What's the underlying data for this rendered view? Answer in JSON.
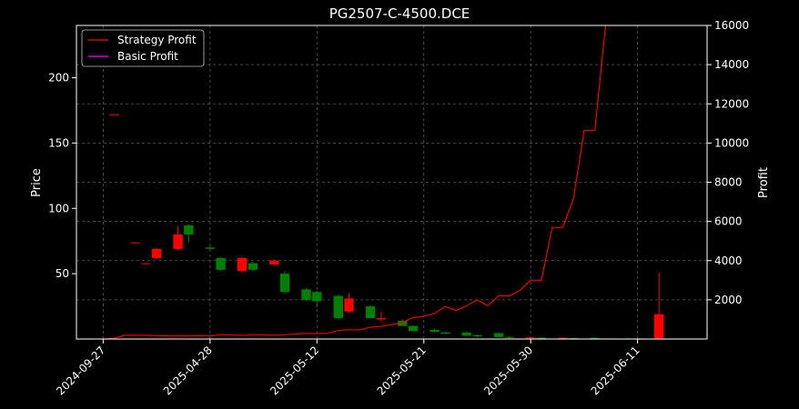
{
  "chart_data": {
    "type": "candlestick",
    "title": "PG2507-C-4500.DCE",
    "ylabel_left": "Price",
    "ylabel_right": "Profit",
    "xlabel": "",
    "left_yticks": [
      50,
      100,
      150,
      200
    ],
    "right_yticks": [
      2000,
      4000,
      6000,
      8000,
      10000,
      12000,
      14000,
      16000
    ],
    "xtick_labels": [
      "2024-09-27",
      "2025-04-28",
      "2025-05-12",
      "2025-05-21",
      "2025-05-30",
      "2025-06-11"
    ],
    "xtick_positions": [
      0,
      10,
      20,
      30,
      40,
      50
    ],
    "ylim_left": [
      0,
      240
    ],
    "ylim_right": [
      0,
      16000
    ],
    "grid": true,
    "legend_position": "top-left",
    "colors": {
      "up": "#ff0000",
      "down": "#008000",
      "strategy": "#ff0000",
      "basic": "#ff00ff"
    },
    "candles": [
      {
        "i": 1,
        "o": 171.5,
        "h": 172.0,
        "l": 171.0,
        "c": 172.0
      },
      {
        "i": 3,
        "o": 73.5,
        "h": 74.0,
        "l": 73.0,
        "c": 74.0
      },
      {
        "i": 4,
        "o": 57.5,
        "h": 58.0,
        "l": 57.0,
        "c": 58.0
      },
      {
        "i": 5,
        "o": 62.0,
        "h": 70.0,
        "l": 61.0,
        "c": 69.0
      },
      {
        "i": 7,
        "o": 69.0,
        "h": 86.0,
        "l": 68.0,
        "c": 80.0
      },
      {
        "i": 8,
        "o": 87.0,
        "h": 88.0,
        "l": 74.0,
        "c": 80.0
      },
      {
        "i": 10,
        "o": 70.0,
        "h": 71.0,
        "l": 67.0,
        "c": 69.0
      },
      {
        "i": 11,
        "o": 62.0,
        "h": 63.0,
        "l": 52.0,
        "c": 53.0
      },
      {
        "i": 13,
        "o": 52.0,
        "h": 63.0,
        "l": 51.0,
        "c": 62.0
      },
      {
        "i": 14,
        "o": 58.0,
        "h": 59.0,
        "l": 52.0,
        "c": 53.0
      },
      {
        "i": 16,
        "o": 57.0,
        "h": 61.0,
        "l": 56.0,
        "c": 60.0
      },
      {
        "i": 17,
        "o": 50.0,
        "h": 52.0,
        "l": 35.0,
        "c": 36.0
      },
      {
        "i": 19,
        "o": 38.0,
        "h": 39.0,
        "l": 29.0,
        "c": 30.0
      },
      {
        "i": 20,
        "o": 36.0,
        "h": 37.0,
        "l": 24.0,
        "c": 29.0
      },
      {
        "i": 22,
        "o": 33.0,
        "h": 34.0,
        "l": 15.0,
        "c": 16.0
      },
      {
        "i": 23,
        "o": 21.0,
        "h": 35.0,
        "l": 20.0,
        "c": 31.0
      },
      {
        "i": 25,
        "o": 25.0,
        "h": 26.0,
        "l": 16.0,
        "c": 16.0
      },
      {
        "i": 26,
        "o": 15.0,
        "h": 21.0,
        "l": 13.0,
        "c": 16.0
      },
      {
        "i": 28,
        "o": 14.0,
        "h": 15.0,
        "l": 10.0,
        "c": 10.0
      },
      {
        "i": 29,
        "o": 10.0,
        "h": 10.5,
        "l": 6.0,
        "c": 6.0
      },
      {
        "i": 31,
        "o": 7.0,
        "h": 8.0,
        "l": 5.0,
        "c": 5.5
      },
      {
        "i": 32,
        "o": 5.0,
        "h": 6.0,
        "l": 4.0,
        "c": 4.0
      },
      {
        "i": 34,
        "o": 5.0,
        "h": 5.5,
        "l": 2.5,
        "c": 2.5
      },
      {
        "i": 35,
        "o": 3.0,
        "h": 3.5,
        "l": 1.5,
        "c": 2.0
      },
      {
        "i": 37,
        "o": 4.5,
        "h": 5.0,
        "l": 1.5,
        "c": 1.5
      },
      {
        "i": 38,
        "o": 1.5,
        "h": 2.0,
        "l": 0.5,
        "c": 1.0
      },
      {
        "i": 40,
        "o": 0.8,
        "h": 1.5,
        "l": 0.3,
        "c": 1.2
      },
      {
        "i": 41,
        "o": 1.0,
        "h": 1.5,
        "l": 0.5,
        "c": 0.6
      },
      {
        "i": 43,
        "o": 0.5,
        "h": 1.2,
        "l": 0.2,
        "c": 0.9
      },
      {
        "i": 44,
        "o": 0.7,
        "h": 1.0,
        "l": 0.3,
        "c": 0.5
      },
      {
        "i": 46,
        "o": 0.9,
        "h": 1.3,
        "l": 0.4,
        "c": 0.6
      },
      {
        "i": 47,
        "o": 0.4,
        "h": 0.8,
        "l": 0.1,
        "c": 0.3
      },
      {
        "i": 49,
        "o": 0.3,
        "h": 0.6,
        "l": 0.1,
        "c": 0.2
      },
      {
        "i": 50,
        "o": 0.1,
        "h": 0.3,
        "l": 0.0,
        "c": 0.2
      },
      {
        "i": 52,
        "o": 0.5,
        "h": 51.0,
        "l": 0.0,
        "c": 19.0
      }
    ],
    "series": [
      {
        "name": "Strategy Profit",
        "color": "#ff0000",
        "points": [
          [
            0,
            0
          ],
          [
            1,
            30
          ],
          [
            2,
            190
          ],
          [
            3,
            200
          ],
          [
            4,
            190
          ],
          [
            5,
            170
          ],
          [
            6,
            160
          ],
          [
            7,
            160
          ],
          [
            8,
            160
          ],
          [
            10,
            170
          ],
          [
            11,
            210
          ],
          [
            12,
            210
          ],
          [
            13,
            190
          ],
          [
            14,
            210
          ],
          [
            15,
            210
          ],
          [
            16,
            190
          ],
          [
            17,
            220
          ],
          [
            18,
            260
          ],
          [
            19,
            280
          ],
          [
            20,
            280
          ],
          [
            21,
            290
          ],
          [
            22,
            440
          ],
          [
            23,
            470
          ],
          [
            24,
            470
          ],
          [
            25,
            600
          ],
          [
            26,
            640
          ],
          [
            27,
            730
          ],
          [
            28,
            850
          ],
          [
            29,
            1100
          ],
          [
            30,
            1160
          ],
          [
            31,
            1300
          ],
          [
            32,
            1660
          ],
          [
            33,
            1460
          ],
          [
            34,
            1690
          ],
          [
            35,
            2000
          ],
          [
            36,
            1700
          ],
          [
            37,
            2200
          ],
          [
            38,
            2200
          ],
          [
            39,
            2480
          ],
          [
            40,
            3000
          ],
          [
            41,
            3000
          ],
          [
            42,
            5670
          ],
          [
            43,
            5700
          ],
          [
            44,
            7160
          ],
          [
            45,
            10640
          ],
          [
            46,
            10650
          ],
          [
            47,
            16000
          ],
          [
            48,
            16000
          ]
        ]
      },
      {
        "name": "Basic Profit",
        "color": "#ff00ff",
        "points": [
          [
            0,
            0
          ],
          [
            48,
            0
          ]
        ]
      }
    ]
  }
}
